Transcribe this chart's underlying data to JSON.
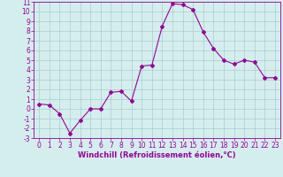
{
  "x": [
    0,
    1,
    2,
    3,
    4,
    5,
    6,
    7,
    8,
    9,
    10,
    11,
    12,
    13,
    14,
    15,
    16,
    17,
    18,
    19,
    20,
    21,
    22,
    23
  ],
  "y": [
    0.5,
    0.4,
    -0.5,
    -2.5,
    -1.2,
    0.0,
    0.0,
    1.7,
    1.8,
    0.8,
    4.4,
    4.5,
    8.5,
    10.8,
    10.7,
    10.2,
    7.9,
    6.2,
    5.0,
    4.6,
    5.0,
    4.8,
    3.2,
    3.2
  ],
  "line_color": "#990099",
  "marker": "D",
  "marker_size": 2,
  "bg_color": "#d4eeee",
  "grid_color": "#aacccc",
  "xlabel": "Windchill (Refroidissement éolien,°C)",
  "ylim": [
    -3,
    11
  ],
  "xlim": [
    -0.5,
    23.5
  ],
  "yticks": [
    11,
    10,
    9,
    8,
    7,
    6,
    5,
    4,
    3,
    2,
    1,
    0,
    -1,
    -2,
    -3
  ],
  "xticks": [
    0,
    1,
    2,
    3,
    4,
    5,
    6,
    7,
    8,
    9,
    10,
    11,
    12,
    13,
    14,
    15,
    16,
    17,
    18,
    19,
    20,
    21,
    22,
    23
  ],
  "tick_color": "#990099",
  "label_fontsize": 6,
  "tick_fontsize": 5.5
}
